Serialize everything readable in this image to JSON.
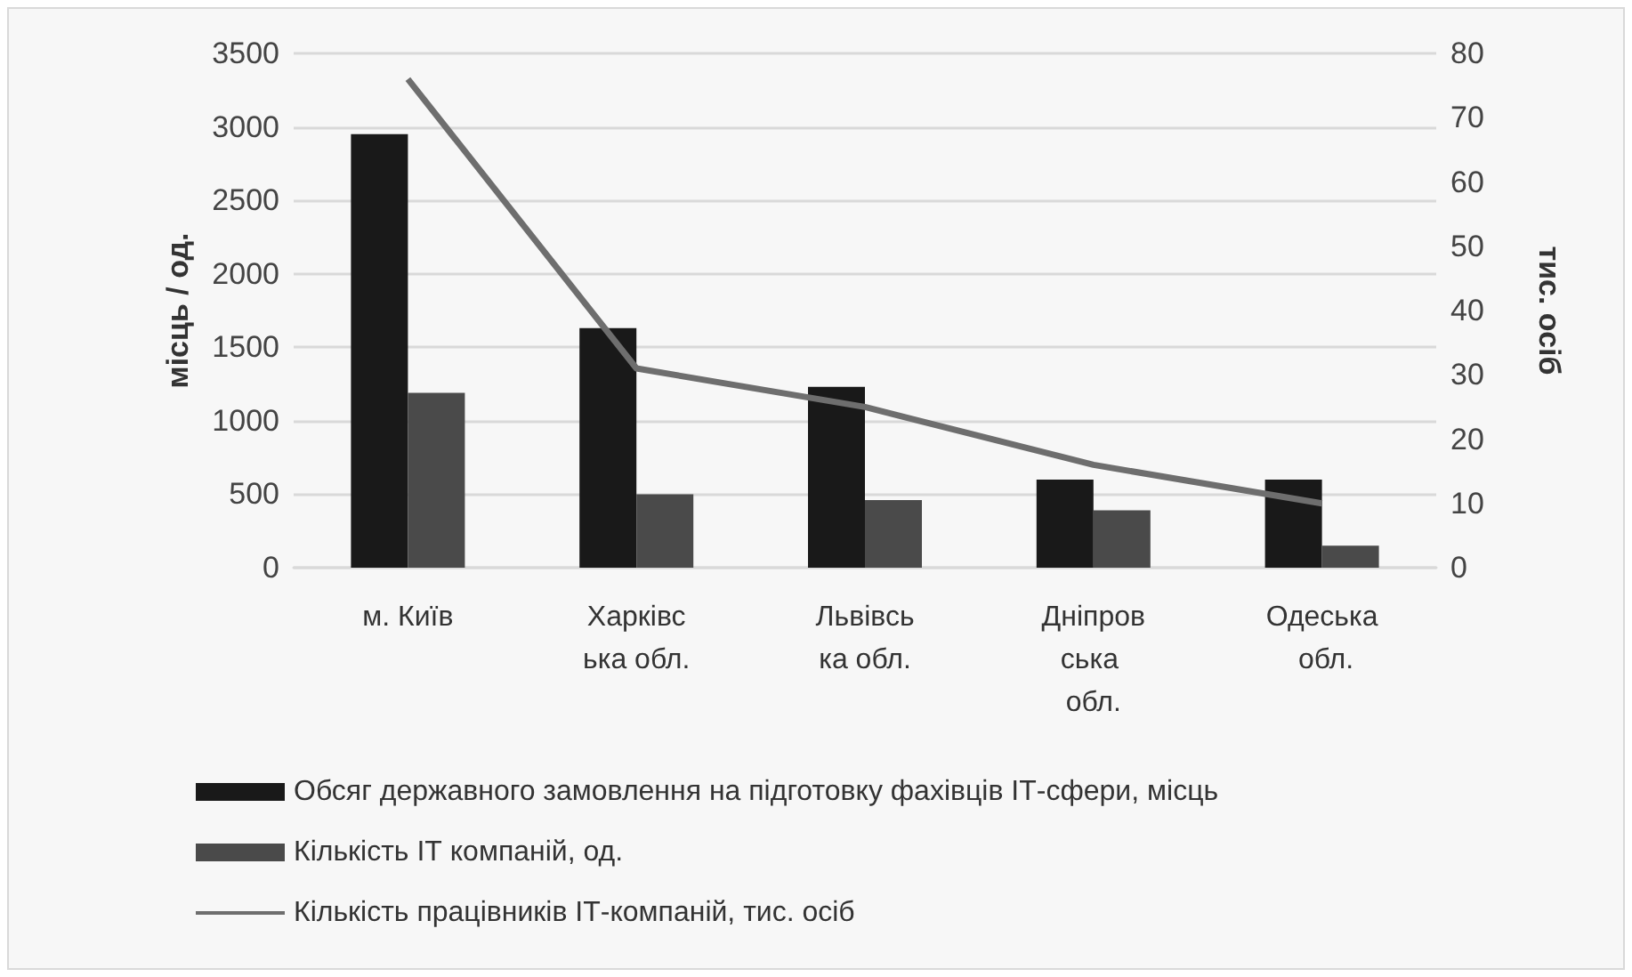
{
  "chart_data": {
    "type": "bar",
    "categories": [
      "м. Київ",
      "Харківська обл.",
      "Львівська обл.",
      "Дніпровська обл.",
      "Одеська обл."
    ],
    "series": [
      {
        "name": "Обсяг державного замовлення на підготовку фахівців ІТ-сфери, місць",
        "color": "#191919",
        "values": [
          2950,
          1630,
          1230,
          600,
          600
        ]
      },
      {
        "name": "Кількість ІТ компаній, од.",
        "color": "#4a4a4a",
        "values": [
          1190,
          500,
          460,
          390,
          150
        ]
      },
      {
        "name": "Кількість працівників ІТ-компаній, тис. осіб",
        "type": "line",
        "axis": "y2",
        "color": "#6e6e6e",
        "values": [
          76,
          31,
          25,
          16,
          10
        ]
      }
    ],
    "ylabel": "місць / од.",
    "y2label": "тис. осіб",
    "ylim": [
      0,
      3500
    ],
    "yticks": [
      0,
      500,
      1000,
      1500,
      2000,
      2500,
      3000,
      3500
    ],
    "y2lim": [
      0,
      80
    ],
    "y2ticks": [
      0,
      10,
      20,
      30,
      40,
      50,
      60,
      70,
      80
    ],
    "grid": "y",
    "legend": "bottom",
    "marker": "none",
    "line_style": "solid"
  }
}
